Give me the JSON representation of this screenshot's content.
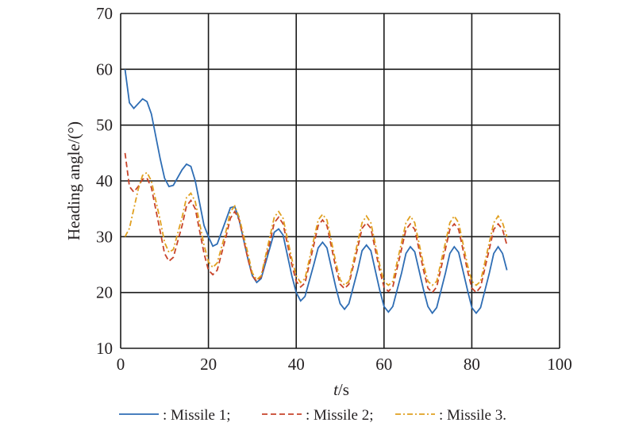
{
  "chart_data": {
    "type": "line",
    "title": "",
    "xlabel": {
      "var": "t",
      "unit": "/s"
    },
    "ylabel": "Heading angle/(°)",
    "xlim": [
      0,
      100
    ],
    "ylim": [
      10,
      70
    ],
    "xticks": [
      0,
      20,
      40,
      60,
      80,
      100
    ],
    "yticks": [
      10,
      20,
      30,
      40,
      50,
      60,
      70
    ],
    "grid": true,
    "legend_placement": "bottom",
    "series": [
      {
        "name": ": Missile 1;",
        "color": "#2e6db4",
        "style": "solid",
        "points": [
          [
            1,
            60
          ],
          [
            2,
            54
          ],
          [
            3,
            53
          ],
          [
            5,
            54.7
          ],
          [
            6,
            54.2
          ],
          [
            7,
            52
          ],
          [
            9,
            44
          ],
          [
            10,
            40.5
          ],
          [
            11,
            39
          ],
          [
            12,
            39.2
          ],
          [
            14,
            42
          ],
          [
            15,
            43
          ],
          [
            16,
            42.6
          ],
          [
            17,
            40
          ],
          [
            19,
            32
          ],
          [
            20,
            30
          ],
          [
            21,
            28.3
          ],
          [
            22,
            28.7
          ],
          [
            24,
            33
          ],
          [
            25,
            35.2
          ],
          [
            26,
            35.4
          ],
          [
            27,
            33
          ],
          [
            29,
            26
          ],
          [
            30,
            23
          ],
          [
            31,
            21.8
          ],
          [
            32,
            22.5
          ],
          [
            34,
            28
          ],
          [
            35,
            30.8
          ],
          [
            36,
            31.4
          ],
          [
            37,
            30.3
          ],
          [
            39,
            23
          ],
          [
            40,
            20
          ],
          [
            41,
            18.5
          ],
          [
            42,
            19.3
          ],
          [
            44,
            25
          ],
          [
            45,
            28
          ],
          [
            46,
            29
          ],
          [
            47,
            28
          ],
          [
            49,
            21
          ],
          [
            50,
            18
          ],
          [
            51,
            17
          ],
          [
            52,
            18
          ],
          [
            54,
            24
          ],
          [
            55,
            27.5
          ],
          [
            56,
            28.5
          ],
          [
            57,
            27.5
          ],
          [
            59,
            20.5
          ],
          [
            60,
            17.5
          ],
          [
            61,
            16.5
          ],
          [
            62,
            17.5
          ],
          [
            64,
            23.5
          ],
          [
            65,
            27
          ],
          [
            66,
            28.2
          ],
          [
            67,
            27.3
          ],
          [
            69,
            20.5
          ],
          [
            70,
            17.5
          ],
          [
            71,
            16.3
          ],
          [
            72,
            17.3
          ],
          [
            74,
            23.5
          ],
          [
            75,
            27
          ],
          [
            76,
            28.2
          ],
          [
            77,
            27.2
          ],
          [
            79,
            20.5
          ],
          [
            80,
            17.3
          ],
          [
            81,
            16.3
          ],
          [
            82,
            17.3
          ],
          [
            84,
            23.5
          ],
          [
            85,
            27
          ],
          [
            86,
            28.2
          ],
          [
            87,
            27
          ],
          [
            88,
            24
          ]
        ]
      },
      {
        "name": ": Missile 2;",
        "color": "#c8442a",
        "style": "dashed",
        "points": [
          [
            1,
            45
          ],
          [
            2,
            39
          ],
          [
            3,
            38
          ],
          [
            4,
            39
          ],
          [
            5,
            40.3
          ],
          [
            6,
            40.5
          ],
          [
            7,
            38.8
          ],
          [
            9,
            31
          ],
          [
            10,
            27
          ],
          [
            11,
            25.6
          ],
          [
            12,
            26.3
          ],
          [
            14,
            32
          ],
          [
            15,
            35.5
          ],
          [
            16,
            36.5
          ],
          [
            17,
            35
          ],
          [
            19,
            27
          ],
          [
            20,
            24
          ],
          [
            21,
            23.2
          ],
          [
            22,
            24
          ],
          [
            24,
            30
          ],
          [
            25,
            33.3
          ],
          [
            26,
            34.5
          ],
          [
            27,
            33
          ],
          [
            29,
            26
          ],
          [
            30,
            23
          ],
          [
            31,
            22
          ],
          [
            32,
            22.8
          ],
          [
            34,
            29
          ],
          [
            35,
            32.5
          ],
          [
            36,
            33.5
          ],
          [
            37,
            32.3
          ],
          [
            39,
            25
          ],
          [
            40,
            22
          ],
          [
            41,
            21
          ],
          [
            42,
            21.7
          ],
          [
            44,
            28.5
          ],
          [
            45,
            32
          ],
          [
            46,
            33
          ],
          [
            47,
            32
          ],
          [
            49,
            24.5
          ],
          [
            50,
            21.5
          ],
          [
            51,
            20.7
          ],
          [
            52,
            21.5
          ],
          [
            54,
            28
          ],
          [
            55,
            31.5
          ],
          [
            56,
            32.5
          ],
          [
            57,
            31.5
          ],
          [
            59,
            24
          ],
          [
            60,
            21
          ],
          [
            61,
            20.2
          ],
          [
            62,
            21
          ],
          [
            64,
            27.8
          ],
          [
            65,
            31.3
          ],
          [
            66,
            32.3
          ],
          [
            67,
            31.3
          ],
          [
            69,
            24
          ],
          [
            70,
            20.8
          ],
          [
            71,
            20
          ],
          [
            72,
            21
          ],
          [
            74,
            27.8
          ],
          [
            75,
            31.3
          ],
          [
            76,
            32.3
          ],
          [
            77,
            31.3
          ],
          [
            79,
            24
          ],
          [
            80,
            20.8
          ],
          [
            81,
            20
          ],
          [
            82,
            21
          ],
          [
            84,
            27.8
          ],
          [
            85,
            31.3
          ],
          [
            86,
            32.3
          ],
          [
            87,
            31.3
          ],
          [
            88,
            28.5
          ]
        ]
      },
      {
        "name": ": Missile 3.",
        "color": "#e0a020",
        "style": "dashdot",
        "points": [
          [
            1,
            30
          ],
          [
            2,
            31.5
          ],
          [
            3,
            35
          ],
          [
            4,
            38.5
          ],
          [
            5,
            41
          ],
          [
            6,
            41.5
          ],
          [
            7,
            40
          ],
          [
            9,
            33
          ],
          [
            10,
            29
          ],
          [
            11,
            27.2
          ],
          [
            12,
            27.7
          ],
          [
            14,
            33.5
          ],
          [
            15,
            37
          ],
          [
            16,
            37.8
          ],
          [
            17,
            36.3
          ],
          [
            19,
            28.5
          ],
          [
            20,
            25.5
          ],
          [
            21,
            24.5
          ],
          [
            22,
            25.3
          ],
          [
            24,
            31
          ],
          [
            25,
            34.5
          ],
          [
            26,
            35.5
          ],
          [
            27,
            33.5
          ],
          [
            29,
            27
          ],
          [
            30,
            23.5
          ],
          [
            31,
            22.3
          ],
          [
            32,
            23
          ],
          [
            34,
            30
          ],
          [
            35,
            33.5
          ],
          [
            36,
            34.5
          ],
          [
            37,
            33.3
          ],
          [
            39,
            26
          ],
          [
            40,
            23
          ],
          [
            41,
            21.8
          ],
          [
            42,
            22.5
          ],
          [
            44,
            29.5
          ],
          [
            45,
            33
          ],
          [
            46,
            34
          ],
          [
            47,
            33
          ],
          [
            49,
            25.5
          ],
          [
            50,
            22.3
          ],
          [
            51,
            21.3
          ],
          [
            52,
            22
          ],
          [
            54,
            29
          ],
          [
            55,
            32.5
          ],
          [
            56,
            33.7
          ],
          [
            57,
            32.5
          ],
          [
            59,
            25
          ],
          [
            60,
            22
          ],
          [
            61,
            21.3
          ],
          [
            62,
            22
          ],
          [
            64,
            29
          ],
          [
            65,
            32.5
          ],
          [
            66,
            33.7
          ],
          [
            67,
            32.5
          ],
          [
            69,
            25
          ],
          [
            70,
            22
          ],
          [
            71,
            21.3
          ],
          [
            72,
            22
          ],
          [
            74,
            29
          ],
          [
            75,
            32.5
          ],
          [
            76,
            33.7
          ],
          [
            77,
            32.5
          ],
          [
            79,
            25
          ],
          [
            80,
            22
          ],
          [
            81,
            21.3
          ],
          [
            82,
            22
          ],
          [
            84,
            29
          ],
          [
            85,
            32.5
          ],
          [
            86,
            33.7
          ],
          [
            87,
            32.5
          ],
          [
            88,
            30
          ]
        ]
      }
    ]
  }
}
